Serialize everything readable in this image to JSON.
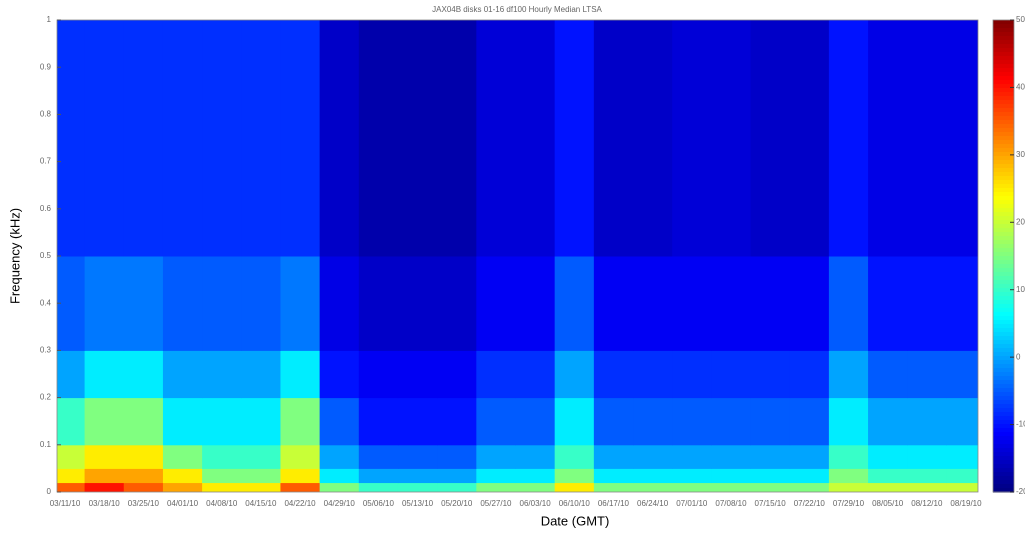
{
  "chart_data": {
    "type": "heatmap",
    "title": "JAX04B disks 01-16 df100 Hourly Median LTSA",
    "x_label": "Date (GMT)",
    "y_label": "Frequency (kHz)",
    "categories": [
      "03/11/10",
      "03/18/10",
      "03/25/10",
      "04/01/10",
      "04/08/10",
      "04/15/10",
      "04/22/10",
      "04/29/10",
      "05/06/10",
      "05/13/10",
      "05/20/10",
      "05/27/10",
      "06/03/10",
      "06/10/10",
      "06/17/10",
      "06/24/10",
      "07/01/10",
      "07/08/10",
      "07/15/10",
      "07/22/10",
      "07/29/10",
      "08/05/10",
      "08/12/10",
      "08/19/10"
    ],
    "ybins": [
      0,
      0.02,
      0.05,
      0.1,
      0.2,
      0.3,
      0.5,
      1
    ],
    "z": [
      [
        35,
        40,
        35,
        30,
        25,
        25,
        35,
        15,
        10,
        10,
        10,
        15,
        15,
        25,
        15,
        15,
        15,
        15,
        15,
        15,
        20,
        20,
        20,
        20
      ],
      [
        25,
        30,
        30,
        25,
        15,
        15,
        25,
        5,
        0,
        0,
        0,
        5,
        5,
        15,
        5,
        5,
        5,
        5,
        5,
        5,
        15,
        10,
        10,
        10
      ],
      [
        20,
        25,
        25,
        15,
        10,
        10,
        20,
        0,
        -5,
        -5,
        -5,
        0,
        0,
        10,
        0,
        0,
        0,
        0,
        0,
        0,
        10,
        5,
        5,
        5
      ],
      [
        10,
        15,
        15,
        5,
        5,
        5,
        15,
        -5,
        -10,
        -10,
        -10,
        -5,
        -5,
        5,
        -5,
        -5,
        -5,
        -5,
        -5,
        -5,
        5,
        0,
        0,
        0
      ],
      [
        0,
        5,
        5,
        0,
        0,
        0,
        5,
        -10,
        -12,
        -12,
        -12,
        -8,
        -8,
        0,
        -8,
        -8,
        -8,
        -8,
        -8,
        -8,
        0,
        -5,
        -5,
        -5
      ],
      [
        -5,
        -3,
        -3,
        -5,
        -5,
        -5,
        -3,
        -13,
        -15,
        -15,
        -15,
        -12,
        -12,
        -5,
        -12,
        -12,
        -12,
        -12,
        -12,
        -12,
        -5,
        -10,
        -10,
        -10
      ],
      [
        -8,
        -8,
        -8,
        -8,
        -8,
        -8,
        -8,
        -15,
        -17,
        -17,
        -17,
        -14,
        -14,
        -10,
        -15,
        -15,
        -14,
        -14,
        -15,
        -15,
        -10,
        -13,
        -13,
        -13
      ]
    ],
    "ylim": [
      0,
      1
    ],
    "yticks": [
      0,
      0.1,
      0.2,
      0.3,
      0.4,
      0.5,
      0.6,
      0.7,
      0.8,
      0.9,
      1
    ],
    "colormap": "jet",
    "clim": [
      -20,
      50
    ],
    "cticks": [
      -20,
      -10,
      0,
      10,
      20,
      30,
      40,
      50
    ]
  }
}
